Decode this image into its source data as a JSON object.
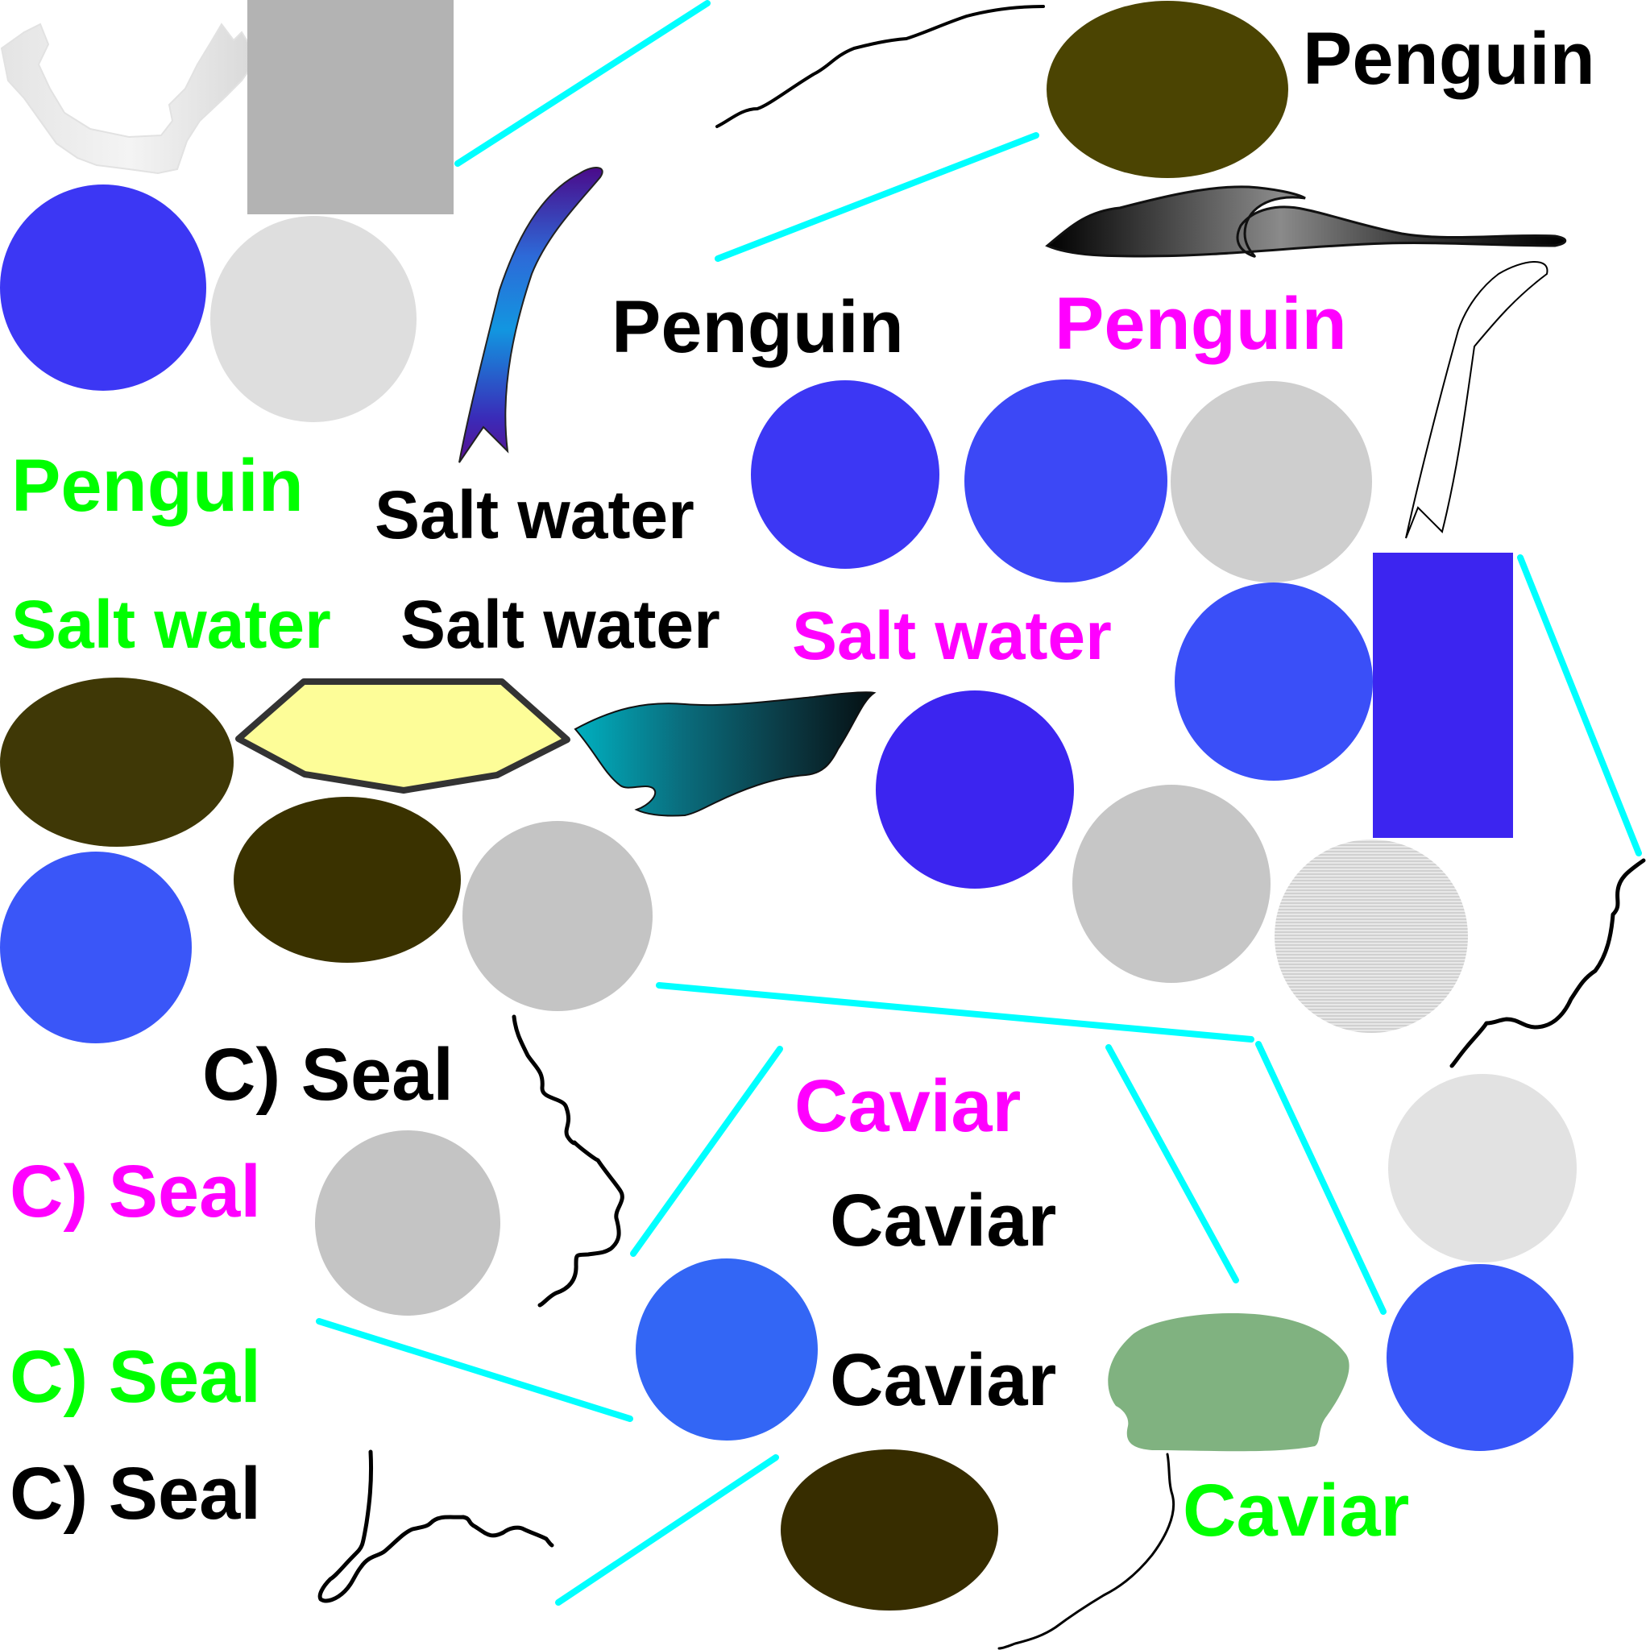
{
  "colors": {
    "purple_blue": "#3c25f0",
    "royal_blue": "#3854fb",
    "bright_blue": "#3366f5",
    "grey_light": "#e0e0e0",
    "grey_mid": "#c4c4c4",
    "grey_dark": "#b3b3b3",
    "olive": "#4b4402",
    "dark_olive": "#3a3200",
    "cyan": "#00ffff",
    "sage": "#80b280",
    "pale_yellow": "#fdfd98",
    "label_black": "#000000",
    "label_green": "#00ff00",
    "label_magenta": "#ff00ff"
  },
  "labels": {
    "penguin_black_top": "Penguin",
    "penguin_black_mid": "Penguin",
    "penguin_magenta": "Penguin",
    "penguin_green": "Penguin",
    "salt_water_black_1": "Salt water",
    "salt_water_green": "Salt water",
    "salt_water_black_2": "Salt water",
    "salt_water_magenta": "Salt water",
    "seal_black_1": "C) Seal",
    "seal_magenta": "C) Seal",
    "seal_green": "C) Seal",
    "seal_black_2": "C) Seal",
    "caviar_magenta": "Caviar",
    "caviar_black_1": "Caviar",
    "caviar_black_2": "Caviar",
    "caviar_green": "Caviar"
  }
}
